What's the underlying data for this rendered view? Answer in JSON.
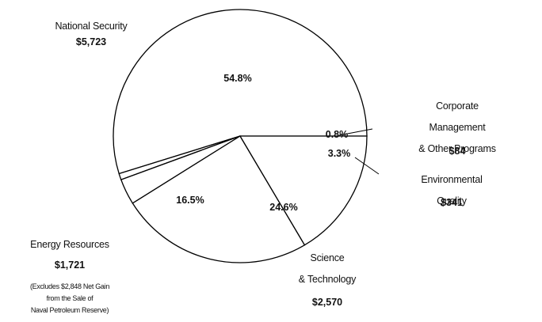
{
  "chart_data": {
    "type": "pie",
    "categories": [
      "National Security",
      "Corporate Management\n& Other Programs",
      "Environmental Quality",
      "Science\n& Technology",
      "Energy Resources"
    ],
    "amount_labels": [
      "$5,723",
      "$84",
      "$341",
      "$2,570",
      "$1,721"
    ],
    "values": [
      54.8,
      0.8,
      3.3,
      24.6,
      16.5
    ],
    "value_labels": [
      "54.8%",
      "0.8%",
      "3.3%",
      "24.6%",
      "16.5%"
    ],
    "color": "#ffffff",
    "annotation": "(Excludes $2,848 Net Gain\nfrom the Sale of\nNaval Petroleum Reserve)"
  }
}
